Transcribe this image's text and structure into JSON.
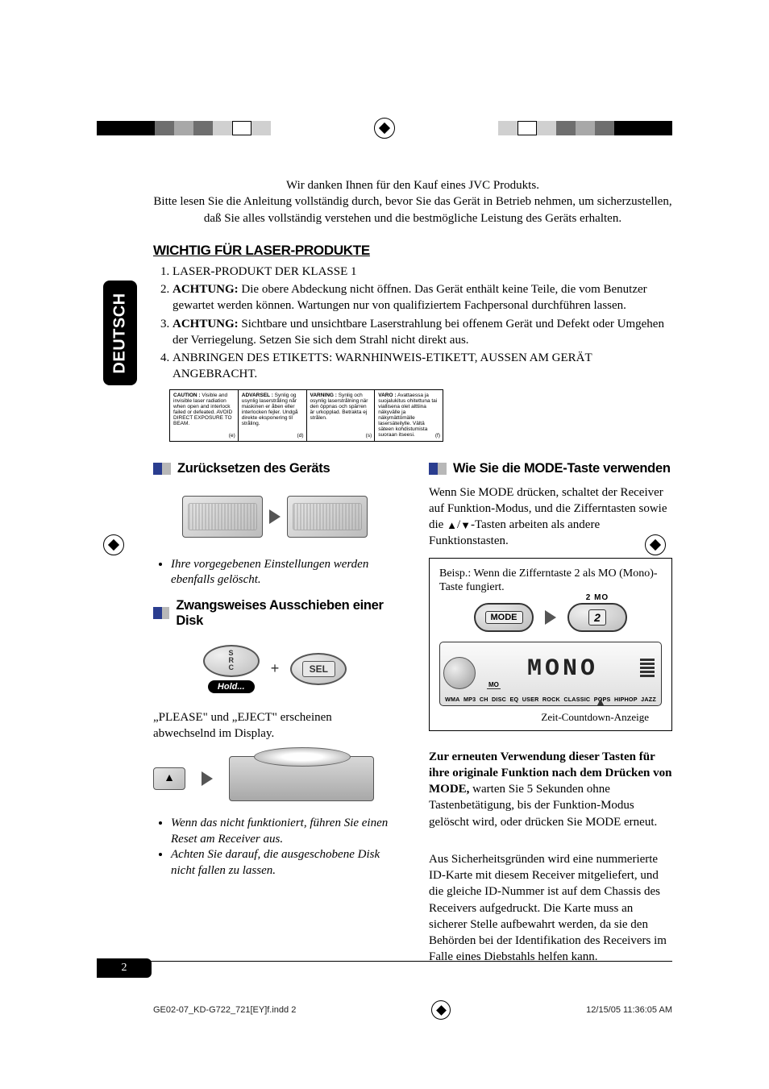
{
  "cropbar": {
    "left_colors": [
      "#000000",
      "#000000",
      "#000000",
      "#6e6e6e",
      "#a8a8a8",
      "#6e6e6e",
      "#d0d0d0",
      "#ffffff",
      "#d0d0d0"
    ],
    "right_colors": [
      "#d0d0d0",
      "#ffffff",
      "#d0d0d0",
      "#6e6e6e",
      "#a8a8a8",
      "#6e6e6e",
      "#000000",
      "#000000",
      "#000000"
    ]
  },
  "sidetab": "DEUTSCH",
  "intro": {
    "l1": "Wir danken Ihnen für den Kauf eines JVC Produkts.",
    "l2": "Bitte lesen Sie die Anleitung vollständig durch, bevor Sie das Gerät in Betrieb nehmen, um sicherzustellen, daß Sie alles vollständig verstehen und die bestmögliche Leistung des Geräts erhalten."
  },
  "section1": {
    "title": "WICHTIG FÜR LASER-PRODUKTE",
    "items": [
      {
        "text": "LASER-PRODUKT DER KLASSE 1"
      },
      {
        "bold": "ACHTUNG:",
        "text": " Die obere Abdeckung nicht öffnen. Das Gerät enthält keine Teile, die vom Benutzer gewartet werden können. Wartungen nur von qualifiziertem Fachpersonal durchführen lassen."
      },
      {
        "bold": "ACHTUNG:",
        "text": " Sichtbare und unsichtbare Laserstrahlung bei offenem Gerät und Defekt oder Umgehen der Verriegelung. Setzen Sie sich dem Strahl nicht direkt aus."
      },
      {
        "text": "ANBRINGEN DES ETIKETTS: WARNHINWEIS-ETIKETT, AUSSEN AM GERÄT ANGEBRACHT."
      }
    ]
  },
  "warning_label": {
    "cols": [
      {
        "head": "CAUTION :",
        "body": "Visible and invisible laser radiation when open and interlock failed or defeated. AVOID DIRECT EXPOSURE TO BEAM.",
        "tag": "(e)"
      },
      {
        "head": "ADVARSEL :",
        "body": "Synlig og usynlig laserstråling når maskinen er åben eller interlocken fejler. Undgå direkte eksponering til stråling.",
        "tag": "(d)"
      },
      {
        "head": "VARNING :",
        "body": "Synlig och osynlig laserstrålning när den öppnas och spärren är urkopplad. Betrakta ej strålen.",
        "tag": "(s)"
      },
      {
        "head": "VARO :",
        "body": "Avattaessa ja suojalukitus ohitettuna tai viallisena olet alttiina näkyvälle ja näkymättömälle lasersäteilylle. Vältä säteen kohdistumista suoraan itseesi.",
        "tag": "(f)"
      }
    ]
  },
  "left": {
    "reset": {
      "title": "Zurücksetzen des Geräts",
      "bullet": "Ihre vorgegebenen Einstellungen werden ebenfalls gelöscht."
    },
    "eject": {
      "title": "Zwangsweises Ausschieben einer Disk",
      "src": "S\nR\nC",
      "hold": "Hold...",
      "sel": "SEL",
      "plus": "+",
      "desc": "„PLEASE\" und „EJECT\" erscheinen abwechselnd im Display.",
      "b1": "Wenn das nicht funktioniert, führen Sie einen Reset am Receiver aus.",
      "b2": "Achten Sie darauf, die ausgeschobene Disk nicht fallen zu lassen."
    }
  },
  "right": {
    "mode": {
      "title": "Wie Sie die MODE-Taste verwenden",
      "intro_a": "Wenn Sie MODE drücken, schaltet der Receiver auf Funktion-Modus, und die Zifferntasten sowie die ",
      "intro_b": "-Tasten arbeiten als andere Funktionstasten.",
      "example_label": "Beisp.: Wenn die Zifferntaste 2 als MO (Mono)-Taste fungiert.",
      "mode_btn": "MODE",
      "num_super": "2  MO",
      "num_btn": "2",
      "lcd_text": "MONO",
      "lcd_mo": "MO",
      "strip": [
        "WMA",
        "MP3",
        "CH",
        "DISC",
        "EQ",
        "USER",
        "ROCK",
        "CLASSIC",
        "POPS",
        "HIPHOP",
        "JAZZ"
      ],
      "countdown": "Zeit-Countdown-Anzeige",
      "after_bold": "Zur erneuten Verwendung dieser Tasten für ihre originale Funktion nach dem Drücken von MODE,",
      "after_rest": " warten Sie 5 Sekunden ohne Tastenbetätigung, bis der Funktion-Modus gelöscht wird, oder drücken Sie MODE erneut.",
      "security": "Aus Sicherheitsgründen wird eine nummerierte ID-Karte mit diesem Receiver mitgeliefert, und die gleiche ID-Nummer ist auf dem Chassis des Receivers aufgedruckt. Die Karte muss an sicherer Stelle aufbewahrt werden, da sie den Behörden bei der Identifikation des Receivers im Falle eines Diebstahls helfen kann."
    }
  },
  "page_number": "2",
  "footer": {
    "left": "GE02-07_KD-G722_721[EY]f.indd   2",
    "right": "12/15/05   11:36:05 AM"
  }
}
